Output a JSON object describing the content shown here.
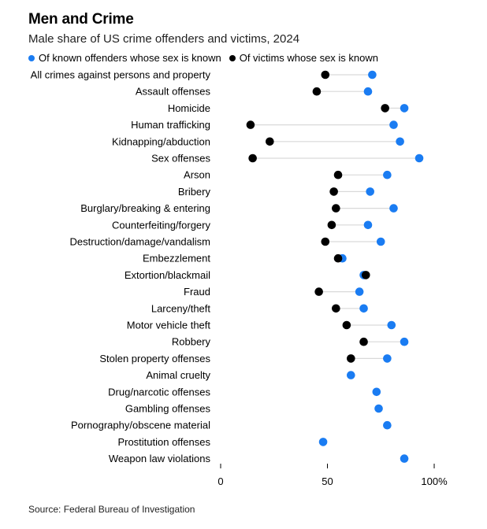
{
  "chart_data": {
    "type": "dot",
    "title": "Men and Crime",
    "subtitle": "Male share of US crime offenders and victims, 2024",
    "xlim": [
      0,
      100
    ],
    "x_ticks": [
      0,
      50,
      100
    ],
    "x_tick_labels": [
      "0",
      "50",
      "100%"
    ],
    "series": [
      {
        "name": "Of known offenders whose sex is known",
        "color": "#1a7cf2"
      },
      {
        "name": "Of victims whose sex is known",
        "color": "#000000"
      }
    ],
    "categories": [
      "All crimes against persons and property",
      "Assault offenses",
      "Homicide",
      "Human trafficking",
      "Kidnapping/abduction",
      "Sex offenses",
      "Arson",
      "Bribery",
      "Burglary/breaking & entering",
      "Counterfeiting/forgery",
      "Destruction/damage/vandalism",
      "Embezzlement",
      "Extortion/blackmail",
      "Fraud",
      "Larceny/theft",
      "Motor vehicle theft",
      "Robbery",
      "Stolen property offenses",
      "Animal cruelty",
      "Drug/narcotic offenses",
      "Gambling offenses",
      "Pornography/obscene material",
      "Prostitution offenses",
      "Weapon law violations"
    ],
    "offenders": [
      71,
      69,
      86,
      81,
      84,
      93,
      78,
      70,
      81,
      69,
      75,
      57,
      67,
      65,
      67,
      80,
      86,
      78,
      61,
      73,
      74,
      78,
      48,
      86
    ],
    "victims": [
      49,
      45,
      77,
      14,
      23,
      15,
      55,
      53,
      54,
      52,
      49,
      55,
      68,
      46,
      54,
      59,
      67,
      61,
      null,
      null,
      null,
      null,
      null,
      null
    ]
  },
  "source": "Source: Federal Bureau of Investigation"
}
